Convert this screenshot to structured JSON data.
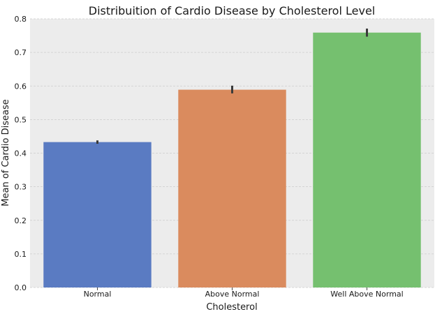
{
  "chart_data": {
    "type": "bar",
    "title": "Distribuition of Cardio Disease by Cholesterol Level",
    "xlabel": "Cholesterol",
    "ylabel": "Mean of Cardio Disease",
    "categories": [
      "Normal",
      "Above Normal",
      "Well Above Normal"
    ],
    "values": [
      0.433,
      0.589,
      0.759
    ],
    "error_bars": [
      {
        "low": 0.428,
        "high": 0.438
      },
      {
        "low": 0.578,
        "high": 0.601
      },
      {
        "low": 0.747,
        "high": 0.771
      }
    ],
    "ylim": [
      0,
      0.8
    ],
    "yticks": [
      0.0,
      0.1,
      0.2,
      0.3,
      0.4,
      0.5,
      0.6,
      0.7,
      0.8
    ],
    "ytick_labels": [
      "0.0",
      "0.1",
      "0.2",
      "0.3",
      "0.4",
      "0.5",
      "0.6",
      "0.7",
      "0.8"
    ],
    "grid": true,
    "colors": {
      "bars": [
        "#5a7bc2",
        "#da8b5e",
        "#75c06f"
      ],
      "plot_background": "#ececec",
      "grid": "#cbcbcb",
      "error_bar": "#3a3a3a"
    }
  }
}
